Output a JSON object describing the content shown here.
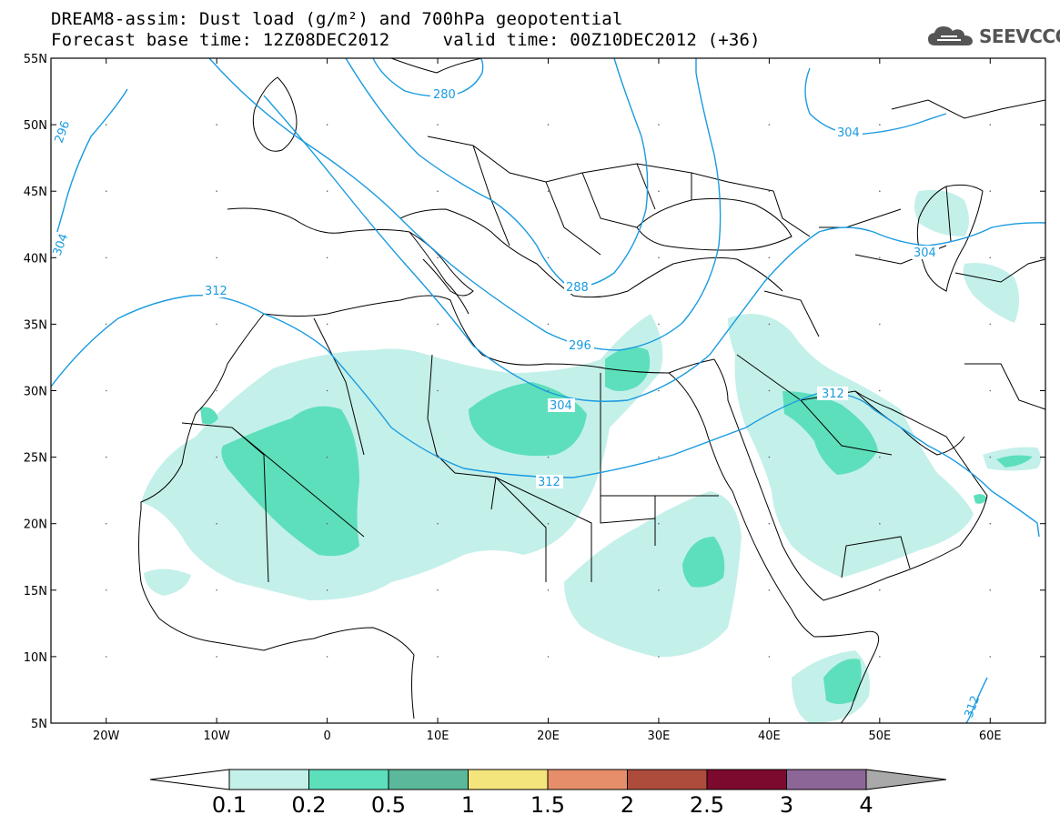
{
  "header": {
    "title_line_1": "DREAM8-assim: Dust load (g/m²) and 700hPa geopotential",
    "title_line_2": "Forecast base time: 12Z08DEC2012     valid time: 00Z10DEC2012 (+36)",
    "logo_text": "SEEVCCC",
    "logo_icon": "cloud-icon"
  },
  "map": {
    "lat_labels": [
      "55N",
      "50N",
      "45N",
      "40N",
      "35N",
      "30N",
      "25N",
      "20N",
      "15N",
      "10N",
      "5N"
    ],
    "lon_labels": [
      "20W",
      "10W",
      "0",
      "10E",
      "20E",
      "30E",
      "40E",
      "50E",
      "60E"
    ],
    "lat_range": [
      5,
      55
    ],
    "lon_range": [
      -25,
      65
    ],
    "contour_color": "#1a9be0",
    "contour_labels": [
      "280",
      "296",
      "304",
      "312",
      "296",
      "304",
      "312",
      "304",
      "312",
      "304",
      "288",
      "312"
    ],
    "dust_fill_colors": [
      "#c4f0ea",
      "#5ddfbc"
    ]
  },
  "colorbar": {
    "colors": [
      "#c4f0ea",
      "#5ddfbc",
      "#5bb89a",
      "#f3e57c",
      "#e68e69",
      "#ad4b3c",
      "#7c0a2e",
      "#8d6698"
    ],
    "under_color": "#ffffff",
    "over_color": "#a9a9a9",
    "tick_labels": [
      "0.1",
      "0.2",
      "0.5",
      "1",
      "1.5",
      "2",
      "2.5",
      "3",
      "4"
    ]
  }
}
